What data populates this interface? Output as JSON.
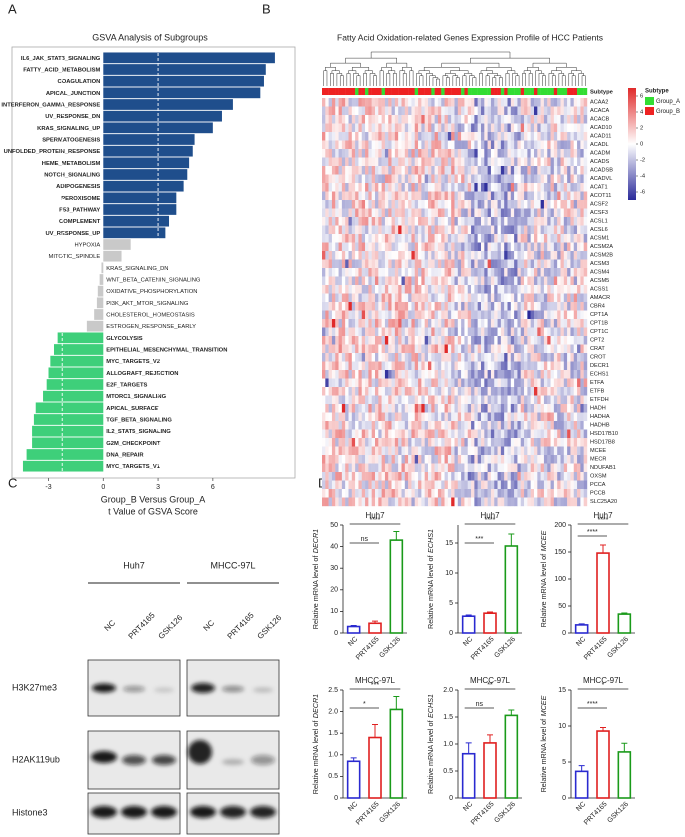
{
  "panel_labels": [
    "A",
    "B",
    "C",
    "D"
  ],
  "chart_data": [
    {
      "type": "hbar",
      "title": "GSVA Analysis of Subgroups",
      "xlabel": "Group_B Versus Group_A",
      "xlabel2": "t Value of GSVA Score",
      "categories": [
        "IL6_JAK_STAT3_SIGNALING",
        "FATTY_ACID_METABOLISM",
        "COAGULATION",
        "APICAL_JUNCTION",
        "INTERFERON_GAMMA_RESPONSE",
        "UV_RESPONSE_DN",
        "KRAS_SIGNALING_UP",
        "SPERMATOGENESIS",
        "UNFOLDED_PROTEIN_RESPONSE",
        "HEME_METABOLISM",
        "NOTCH_SIGNALING",
        "ADIPOGENESIS",
        "PEROXISOME",
        "P53_PATHWAY",
        "COMPLEMENT",
        "UV_RESPONSE_UP",
        "HYPOXIA",
        "MITOTIC_SPINDLE",
        "KRAS_SIGNALING_DN",
        "WNT_BETA_CATENIN_SIGNALING",
        "OXIDATIVE_PHOSPHORYLATION",
        "PI3K_AKT_MTOR_SIGNALING",
        "CHOLESTEROL_HOMEOSTASIS",
        "ESTROGEN_RESPONSE_EARLY",
        "GLYCOLYSIS",
        "EPITHELIAL_MESENCHYMAL_TRANSITION",
        "MYC_TARGETS_V2",
        "ALLOGRAFT_REJECTION",
        "E2F_TARGETS",
        "MTORC1_SIGNALING",
        "APICAL_SURFACE",
        "TGF_BETA_SIGNALING",
        "IL2_STAT5_SIGNALING",
        "G2M_CHECKPOINT",
        "DNA_REPAIR",
        "MYC_TARGETS_V1"
      ],
      "values": [
        9.4,
        8.9,
        8.8,
        8.6,
        7.1,
        6.5,
        6.0,
        5.0,
        4.9,
        4.7,
        4.6,
        4.4,
        4.0,
        4.0,
        3.6,
        3.4,
        1.5,
        1.0,
        -0.1,
        -0.2,
        -0.3,
        -0.35,
        -0.5,
        -0.9,
        -2.5,
        -2.7,
        -2.9,
        -3.0,
        -3.1,
        -3.3,
        -3.7,
        -3.8,
        -3.9,
        -3.9,
        -4.2,
        -4.4
      ],
      "colors": {
        "positive": "#1f4e8c",
        "negative": "#3ecf7a",
        "not_significant": "#c9c9c9"
      },
      "threshold_lines": [
        -2.25,
        3
      ],
      "xlim": [
        -5,
        10.5
      ],
      "xticks": [
        -3,
        0,
        3,
        6
      ]
    },
    {
      "type": "heatmap",
      "title": "Fatty Acid Oxidation-related Genes Expression Profile of HCC Patients",
      "annotation_label": "Subtype",
      "rows": [
        "ACAA2",
        "ACACA",
        "ACACB",
        "ACAD10",
        "ACAD11",
        "ACADL",
        "ACADM",
        "ACADS",
        "ACADSB",
        "ACADVL",
        "ACAT1",
        "ACOT11",
        "ACSF2",
        "ACSF3",
        "ACSL1",
        "ACSL6",
        "ACSM1",
        "ACSM2A",
        "ACSM2B",
        "ACSM3",
        "ACSM4",
        "ACSM5",
        "ACSS1",
        "AMACR",
        "CBR4",
        "CPT1A",
        "CPT1B",
        "CPT1C",
        "CPT2",
        "CRAT",
        "CROT",
        "DECR1",
        "ECHS1",
        "ETFA",
        "ETFB",
        "ETFDH",
        "HADH",
        "HADHA",
        "HADHB",
        "HSD17B10",
        "HSD17B8",
        "MCEE",
        "MECR",
        "NDUFAB1",
        "OXSM",
        "PCCA",
        "PCCB",
        "SLC25A20"
      ],
      "colorbar": {
        "colors": [
          "#2a2a9a",
          "#ffffff",
          "#e02a2a"
        ],
        "clim": [
          -7,
          7
        ],
        "ticks": [
          6,
          4,
          2,
          0,
          -2,
          -4,
          -6
        ]
      },
      "legend": {
        "title": "Subtype",
        "items": [
          {
            "name": "Group_A",
            "color": "#33dd33"
          },
          {
            "name": "Group_B",
            "color": "#ee2222"
          }
        ]
      }
    },
    {
      "type": "bar",
      "title": "Huh7",
      "ylabel": "Relative mRNA level of",
      "gene": "DECR1",
      "categories": [
        "NC",
        "PRT4165",
        "GSK126"
      ],
      "colors": [
        "#2a2ad0",
        "#e02020",
        "#1a9a1a"
      ],
      "values": [
        3,
        4.5,
        43
      ],
      "errors": [
        0.5,
        1,
        4
      ],
      "significance": [
        "ns",
        "****"
      ],
      "ylim": [
        0,
        50
      ],
      "yticks": [
        0,
        10,
        20,
        30,
        40,
        50
      ]
    },
    {
      "type": "bar",
      "title": "Huh7",
      "ylabel": "Relative mRNA level of",
      "gene": "ECHS1",
      "categories": [
        "NC",
        "PRT4165",
        "GSK126"
      ],
      "colors": [
        "#2a2ad0",
        "#e02020",
        "#1a9a1a"
      ],
      "values": [
        2.8,
        3.3,
        14.5
      ],
      "errors": [
        0.2,
        0.2,
        2
      ],
      "significance": [
        "***",
        "****"
      ],
      "ylim": [
        0,
        18
      ],
      "yticks": [
        0,
        5,
        10,
        15
      ]
    },
    {
      "type": "bar",
      "title": "Huh7",
      "ylabel": "Relative mRNA level of",
      "gene": "MCEE",
      "categories": [
        "NC",
        "PRT4165",
        "GSK126"
      ],
      "colors": [
        "#2a2ad0",
        "#e02020",
        "#1a9a1a"
      ],
      "values": [
        15,
        148,
        35
      ],
      "errors": [
        2,
        15,
        2
      ],
      "significance": [
        "****",
        "****"
      ],
      "ylim": [
        0,
        200
      ],
      "yticks": [
        0,
        50,
        100,
        150,
        200
      ]
    },
    {
      "type": "bar",
      "title": "MHCC-97L",
      "ylabel": "Relative mRNA level of",
      "gene": "DECR1",
      "categories": [
        "NC",
        "PRT4165",
        "GSK126"
      ],
      "colors": [
        "#2a2ad0",
        "#e02020",
        "#1a9a1a"
      ],
      "values": [
        0.85,
        1.4,
        2.05
      ],
      "errors": [
        0.08,
        0.3,
        0.3
      ],
      "significance": [
        "*",
        "***"
      ],
      "ylim": [
        0,
        2.5
      ],
      "yticks": [
        0,
        0.5,
        {
          "value": 1,
          "label": "1.0"
        },
        1.5,
        {
          "value": 2,
          "label": "2.0"
        },
        2.5
      ]
    },
    {
      "type": "bar",
      "title": "MHCC-97L",
      "ylabel": "Relative mRNA level of",
      "gene": "ECHS1",
      "categories": [
        "NC",
        "PRT4165",
        "GSK126"
      ],
      "colors": [
        "#2a2ad0",
        "#e02020",
        "#1a9a1a"
      ],
      "values": [
        0.82,
        1.02,
        1.53
      ],
      "errors": [
        0.2,
        0.15,
        0.1
      ],
      "significance": [
        "ns",
        "**"
      ],
      "ylim": [
        0,
        2
      ],
      "yticks": [
        0,
        0.5,
        {
          "value": 1,
          "label": "1.0"
        },
        1.5,
        {
          "value": 2,
          "label": "2.0"
        }
      ]
    },
    {
      "type": "bar",
      "title": "MHCC-97L",
      "ylabel": "Relative mRNA level of",
      "gene": "MCEE",
      "categories": [
        "NC",
        "PRT4165",
        "GSK126"
      ],
      "colors": [
        "#2a2ad0",
        "#e02020",
        "#1a9a1a"
      ],
      "values": [
        3.7,
        9.3,
        6.4
      ],
      "errors": [
        0.8,
        0.5,
        1.2
      ],
      "significance": [
        "****",
        "*"
      ],
      "ylim": [
        0,
        15
      ],
      "yticks": [
        0,
        5,
        10,
        15
      ]
    }
  ],
  "western_blot": {
    "cell_lines": [
      "Huh7",
      "MHCC-97L"
    ],
    "lanes": [
      "NC",
      "PRT4165",
      "GSK126"
    ],
    "proteins": [
      "H3K27me3",
      "H2AK119ub",
      "Histone3"
    ]
  }
}
